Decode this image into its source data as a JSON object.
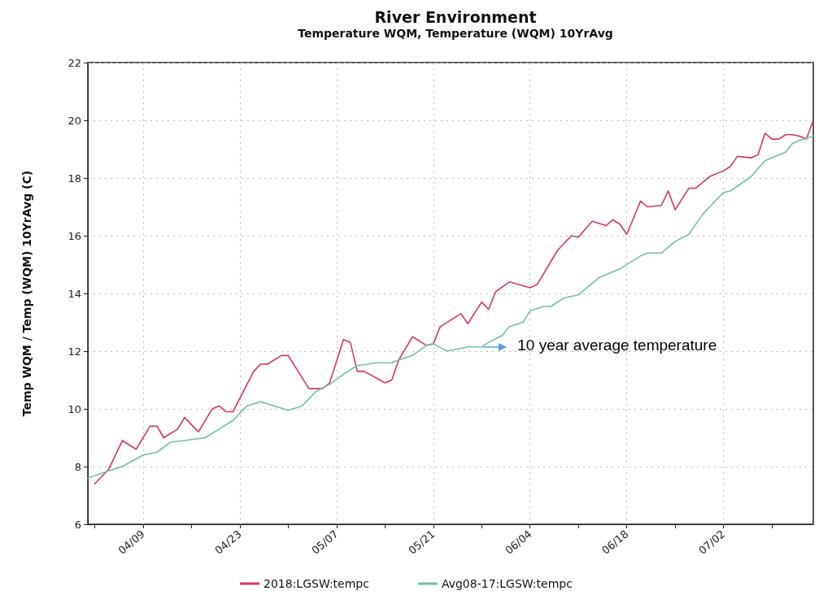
{
  "chart_data": {
    "type": "line",
    "title": "River Environment",
    "subtitle": "Temperature WQM, Temperature (WQM) 10YrAvg",
    "ylabel": "Temp WQM / Temp (WQM) 10YrAvg (C)",
    "xlim": [
      "--04-01",
      "--07-15"
    ],
    "xticks": [
      {
        "value": "--04-02",
        "label": null
      },
      {
        "value": "--04-09",
        "label": "04/09"
      },
      {
        "value": "--04-16",
        "label": null
      },
      {
        "value": "--04-23",
        "label": "04/23"
      },
      {
        "value": "--04-30",
        "label": null
      },
      {
        "value": "--05-07",
        "label": "05/07"
      },
      {
        "value": "--05-14",
        "label": null
      },
      {
        "value": "--05-21",
        "label": "05/21"
      },
      {
        "value": "--05-28",
        "label": null
      },
      {
        "value": "--06-04",
        "label": "06/04"
      },
      {
        "value": "--06-11",
        "label": null
      },
      {
        "value": "--06-18",
        "label": "06/18"
      },
      {
        "value": "--06-25",
        "label": null
      },
      {
        "value": "--07-02",
        "label": "07/02"
      },
      {
        "value": "--07-09",
        "label": null
      }
    ],
    "ylim": [
      6,
      22
    ],
    "yticks": [
      6,
      8,
      10,
      12,
      14,
      16,
      18,
      20,
      22
    ],
    "grid": true,
    "legend": "bottom",
    "marker": "none",
    "line_style": "solid",
    "series": [
      {
        "name": "2018:LGSW:tempc",
        "color": "#d6365e",
        "x": [
          "--04-02",
          "--04-04",
          "--04-06",
          "--04-08",
          "--04-10",
          "--04-11",
          "--04-12",
          "--04-14",
          "--04-15",
          "--04-17",
          "--04-19",
          "--04-20",
          "--04-21",
          "--04-22",
          "--04-25",
          "--04-26",
          "--04-27",
          "--04-29",
          "--04-30",
          "--05-03",
          "--05-05",
          "--05-06",
          "--05-08",
          "--05-09",
          "--05-10",
          "--05-11",
          "--05-14",
          "--05-15",
          "--05-16",
          "--05-18",
          "--05-20",
          "--05-21",
          "--05-22",
          "--05-25",
          "--05-26",
          "--05-28",
          "--05-29",
          "--05-30",
          "--06-01",
          "--06-04",
          "--06-05",
          "--06-08",
          "--06-10",
          "--06-11",
          "--06-13",
          "--06-15",
          "--06-16",
          "--06-17",
          "--06-18",
          "--06-20",
          "--06-21",
          "--06-23",
          "--06-24",
          "--06-25",
          "--06-27",
          "--06-28",
          "--06-30",
          "--07-02",
          "--07-03",
          "--07-04",
          "--07-06",
          "--07-07",
          "--07-08",
          "--07-09",
          "--07-10",
          "--07-11",
          "--07-12",
          "--07-13",
          "--07-14",
          "--07-15"
        ],
        "values": [
          7.4,
          7.9,
          8.9,
          8.6,
          9.4,
          9.4,
          9.0,
          9.3,
          9.7,
          9.2,
          10.0,
          10.1,
          9.9,
          9.9,
          11.3,
          11.55,
          11.55,
          11.85,
          11.85,
          10.7,
          10.7,
          10.9,
          12.4,
          12.3,
          11.3,
          11.3,
          10.9,
          11.0,
          11.7,
          12.5,
          12.2,
          12.25,
          12.85,
          13.3,
          12.95,
          13.7,
          13.45,
          14.05,
          14.4,
          14.2,
          14.3,
          15.5,
          16.0,
          15.95,
          16.5,
          16.35,
          16.55,
          16.4,
          16.05,
          17.2,
          17.0,
          17.05,
          17.55,
          16.9,
          17.65,
          17.65,
          18.05,
          18.25,
          18.4,
          18.75,
          18.7,
          18.8,
          19.55,
          19.35,
          19.35,
          19.5,
          19.5,
          19.45,
          19.35,
          20.0
        ]
      },
      {
        "name": "Avg08-17:LGSW:tempc",
        "color": "#6fc39b",
        "x": [
          "--04-01",
          "--04-04",
          "--04-06",
          "--04-09",
          "--04-11",
          "--04-13",
          "--04-15",
          "--04-18",
          "--04-20",
          "--04-22",
          "--04-24",
          "--04-26",
          "--04-28",
          "--04-30",
          "--05-02",
          "--05-04",
          "--05-06",
          "--05-08",
          "--05-10",
          "--05-13",
          "--05-15",
          "--05-16",
          "--05-18",
          "--05-20",
          "--05-21",
          "--05-23",
          "--05-26",
          "--05-28",
          "--05-29",
          "--05-31",
          "--06-01",
          "--06-03",
          "--06-04",
          "--06-06",
          "--06-07",
          "--06-09",
          "--06-11",
          "--06-14",
          "--06-17",
          "--06-20",
          "--06-21",
          "--06-23",
          "--06-25",
          "--06-27",
          "--06-29",
          "--07-02",
          "--07-03",
          "--07-06",
          "--07-08",
          "--07-11",
          "--07-12",
          "--07-13",
          "--07-15"
        ],
        "values": [
          7.6,
          7.85,
          8.0,
          8.4,
          8.5,
          8.85,
          8.9,
          9.0,
          9.3,
          9.6,
          10.1,
          10.25,
          10.1,
          9.95,
          10.1,
          10.6,
          10.85,
          11.2,
          11.5,
          11.6,
          11.6,
          11.7,
          11.85,
          12.2,
          12.25,
          12.0,
          12.15,
          12.15,
          12.3,
          12.55,
          12.85,
          13.0,
          13.4,
          13.55,
          13.55,
          13.85,
          13.95,
          14.55,
          14.85,
          15.3,
          15.4,
          15.4,
          15.8,
          16.05,
          16.75,
          17.5,
          17.55,
          18.05,
          18.6,
          18.9,
          19.2,
          19.3,
          19.45
        ]
      }
    ],
    "annotations": [
      {
        "text": "10 year average temperature",
        "x": "--05-28",
        "y": 12.15
      }
    ]
  }
}
